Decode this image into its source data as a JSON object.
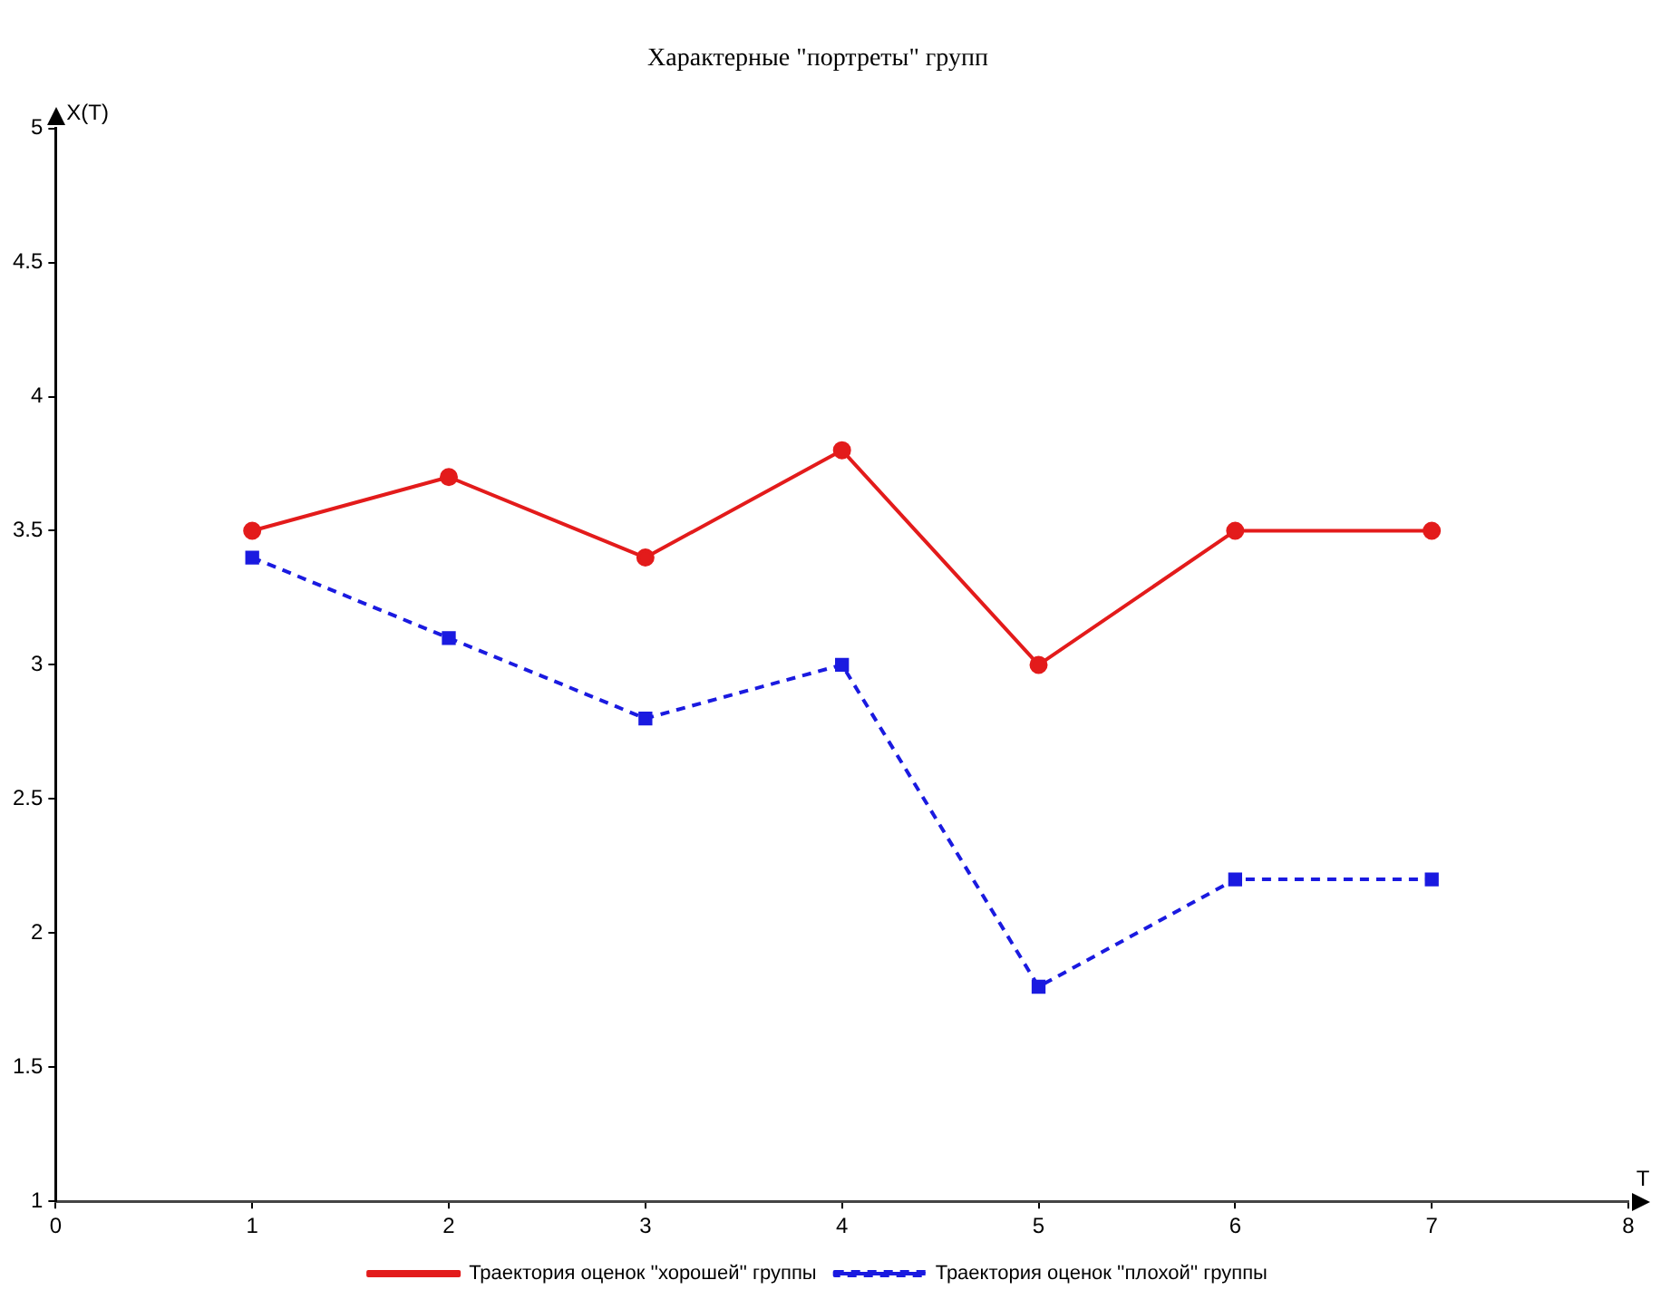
{
  "chart_data": {
    "type": "line",
    "title": "Характерные \"портреты\" групп",
    "xlabel": "T",
    "ylabel": "X(T)",
    "x": [
      1,
      2,
      3,
      4,
      5,
      6,
      7
    ],
    "series": [
      {
        "name": "Траектория оценок ''хорошей'' группы",
        "color": "#e31b1b",
        "marker": "circle",
        "line_style": "solid",
        "values": [
          3.5,
          3.7,
          3.4,
          3.8,
          3.0,
          3.5,
          3.5
        ]
      },
      {
        "name": "Траектория оценок ''плохой'' группы",
        "color": "#1a1ae0",
        "marker": "square",
        "line_style": "dashed",
        "values": [
          3.4,
          3.1,
          2.8,
          3.0,
          1.8,
          2.2,
          2.2
        ]
      }
    ],
    "xlim": [
      0,
      8
    ],
    "xticks": [
      0,
      1,
      2,
      3,
      4,
      5,
      6,
      7,
      8
    ],
    "ylim": [
      1,
      5
    ],
    "yticks": [
      1,
      1.5,
      2,
      2.5,
      3,
      3.5,
      4,
      4.5,
      5
    ],
    "grid": false,
    "legend": "bottom"
  }
}
